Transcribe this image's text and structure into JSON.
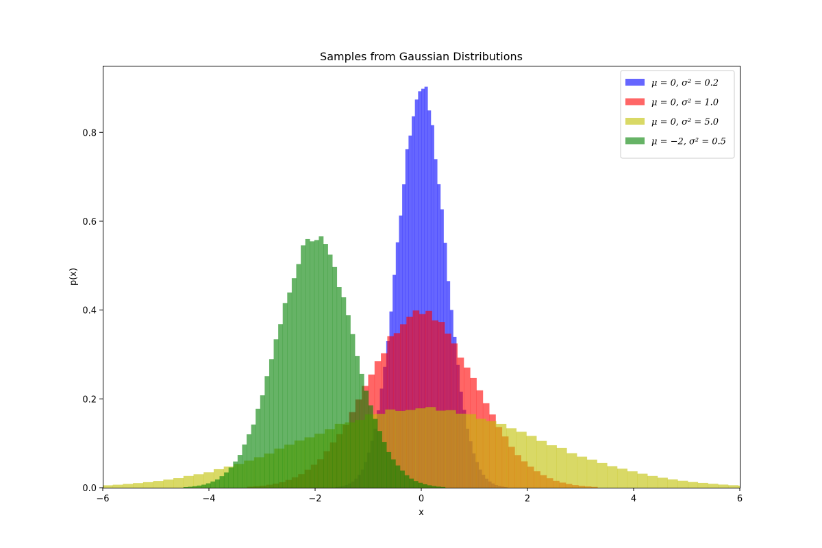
{
  "chart_data": {
    "type": "histogram",
    "title": "Samples from Gaussian Distributions",
    "xlabel": "x",
    "ylabel": "p(x)",
    "xlim": [
      -6,
      6
    ],
    "ylim": [
      0,
      0.95
    ],
    "x_ticks": [
      -6,
      -4,
      -2,
      0,
      2,
      4,
      6
    ],
    "x_tick_labels": [
      "−6",
      "−4",
      "−2",
      "0",
      "2",
      "4",
      "6"
    ],
    "y_ticks": [
      0.0,
      0.2,
      0.4,
      0.6,
      0.8
    ],
    "y_tick_labels": [
      "0.0",
      "0.2",
      "0.4",
      "0.6",
      "0.8"
    ],
    "grid": false,
    "legend_position": "top-right",
    "series": [
      {
        "name": "μ = 0, σ² = 0.2",
        "mu": 0,
        "variance": 0.2,
        "color": "#0000ff",
        "opacity": 0.6,
        "bin_width": 0.06,
        "range": [
          -2.1,
          2.1
        ],
        "peak": 0.9
      },
      {
        "name": "μ = 0, σ² = 1.0",
        "mu": 0,
        "variance": 1.0,
        "color": "#ff0000",
        "opacity": 0.6,
        "bin_width": 0.12,
        "range": [
          -4.6,
          4.6
        ],
        "peak": 0.395
      },
      {
        "name": "μ = 0, σ² = 5.0",
        "mu": 0,
        "variance": 5.0,
        "color": "#bfbf00",
        "opacity": 0.6,
        "bin_width": 0.19,
        "range": [
          -6,
          6
        ],
        "peak": 0.178
      },
      {
        "name": "μ = −2, σ² = 0.5",
        "mu": -2,
        "variance": 0.5,
        "color": "#008000",
        "opacity": 0.6,
        "bin_width": 0.085,
        "range": [
          -5.5,
          1.5
        ],
        "peak": 0.563
      }
    ]
  }
}
